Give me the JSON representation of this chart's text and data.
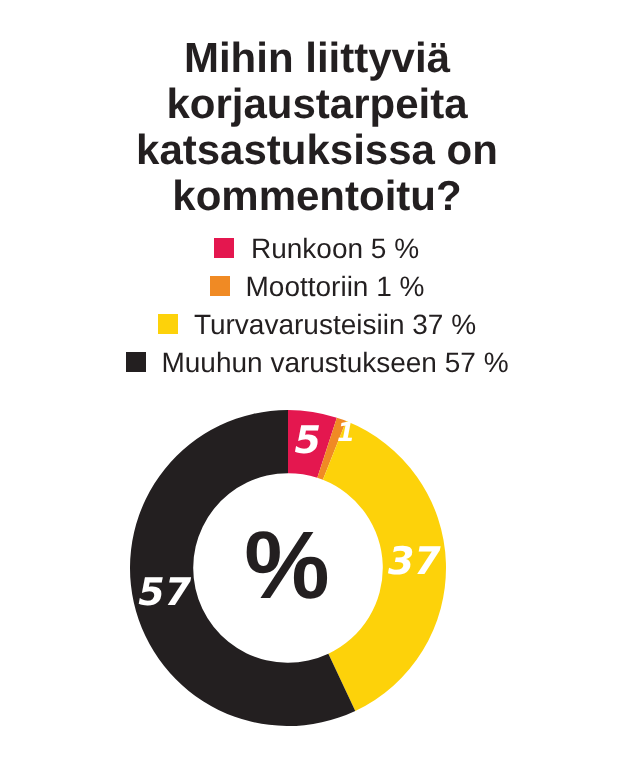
{
  "chart_data": {
    "type": "donut",
    "title": "Mihin liittyviä korjaustarpeita katsastuksissa on kommentoitu?",
    "categories": [
      "Runkoon 5 %",
      "Moottoriin 1 %",
      "Turvavarusteisiin 37 %",
      "Muuhun varustukseen 57 %"
    ],
    "values": [
      5,
      1,
      37,
      57
    ],
    "colors": [
      "#e4174f",
      "#f08a24",
      "#fdd20a",
      "#231f20"
    ],
    "data_labels": true,
    "legend": "top",
    "annotations": [
      "%"
    ]
  }
}
